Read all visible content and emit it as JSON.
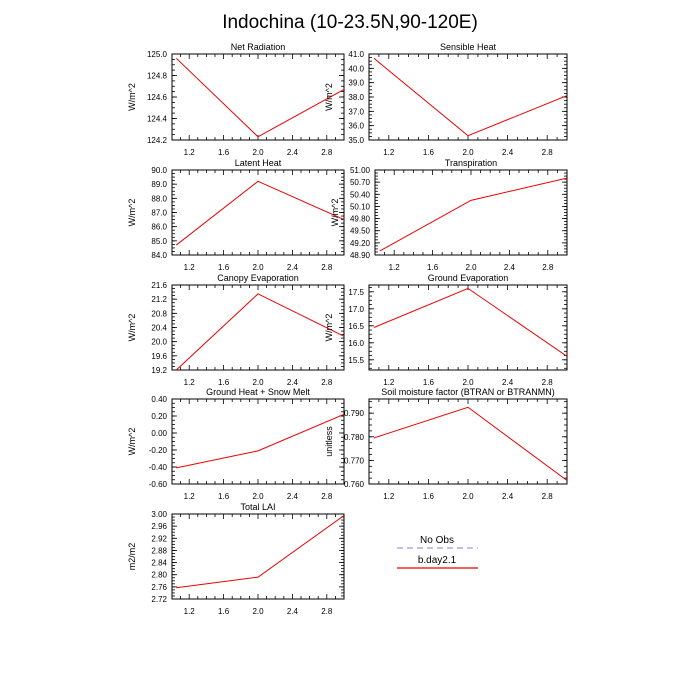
{
  "figure": {
    "title": "Indochina (10-23.5N,90-120E)"
  },
  "legend": {
    "items": [
      {
        "label": "No Obs",
        "color": "#9999ee",
        "dashed": true
      },
      {
        "label": "b.day2.1",
        "color": "#ee0000",
        "dashed": false
      }
    ]
  },
  "chart_data": [
    {
      "type": "line",
      "title": "Net Radiation",
      "ylabel": "W/m^2",
      "xlim": [
        1.0,
        3.0
      ],
      "xticks": [
        "1.2",
        "1.6",
        "2.0",
        "2.4",
        "2.8"
      ],
      "ylim": [
        124.2,
        125.0
      ],
      "yticks": [
        "124.2",
        "124.4",
        "124.6",
        "124.8",
        "125.0"
      ],
      "series": [
        {
          "name": "b.day2.1",
          "x": [
            1.05,
            2.0,
            3.0
          ],
          "y": [
            124.96,
            124.23,
            124.67
          ]
        }
      ]
    },
    {
      "type": "line",
      "title": "Sensible Heat",
      "ylabel": "W/m^2",
      "xlim": [
        1.0,
        3.0
      ],
      "xticks": [
        "1.2",
        "1.6",
        "2.0",
        "2.4",
        "2.8"
      ],
      "ylim": [
        35.0,
        41.0
      ],
      "yticks": [
        "35.0",
        "36.0",
        "37.0",
        "38.0",
        "39.0",
        "40.0",
        "41.0"
      ],
      "series": [
        {
          "name": "b.day2.1",
          "x": [
            1.05,
            2.0,
            3.0
          ],
          "y": [
            40.7,
            35.3,
            38.1
          ]
        }
      ]
    },
    {
      "type": "line",
      "title": "Latent Heat",
      "ylabel": "W/m^2",
      "xlim": [
        1.0,
        3.0
      ],
      "xticks": [
        "1.2",
        "1.6",
        "2.0",
        "2.4",
        "2.8"
      ],
      "ylim": [
        84.0,
        90.0
      ],
      "yticks": [
        "84.0",
        "85.0",
        "86.0",
        "87.0",
        "88.0",
        "89.0",
        "90.0"
      ],
      "series": [
        {
          "name": "b.day2.1",
          "x": [
            1.05,
            2.0,
            3.0
          ],
          "y": [
            84.7,
            89.2,
            86.5
          ]
        }
      ]
    },
    {
      "type": "line",
      "title": "Transpiration",
      "ylabel": "W/m^2",
      "xlim": [
        1.0,
        3.0
      ],
      "xticks": [
        "1.2",
        "1.6",
        "2.0",
        "2.4",
        "2.8"
      ],
      "ylim": [
        48.9,
        51.0
      ],
      "yticks": [
        "48.90",
        "49.20",
        "49.50",
        "49.80",
        "50.10",
        "50.40",
        "50.70",
        "51.00"
      ],
      "series": [
        {
          "name": "b.day2.1",
          "x": [
            1.05,
            2.0,
            3.0
          ],
          "y": [
            49.0,
            50.25,
            50.8
          ]
        }
      ]
    },
    {
      "type": "line",
      "title": "Canopy Evaporation",
      "ylabel": "W/m^2",
      "xlim": [
        1.0,
        3.0
      ],
      "xticks": [
        "1.2",
        "1.6",
        "2.0",
        "2.4",
        "2.8"
      ],
      "ylim": [
        19.2,
        21.6
      ],
      "yticks": [
        "19.2",
        "19.6",
        "20.0",
        "20.4",
        "20.8",
        "21.2",
        "21.6"
      ],
      "series": [
        {
          "name": "b.day2.1",
          "x": [
            1.05,
            2.0,
            3.0
          ],
          "y": [
            19.2,
            21.35,
            20.15
          ]
        }
      ]
    },
    {
      "type": "line",
      "title": "Ground Evaporation",
      "ylabel": "W/m^2",
      "xlim": [
        1.0,
        3.0
      ],
      "xticks": [
        "1.2",
        "1.6",
        "2.0",
        "2.4",
        "2.8"
      ],
      "ylim": [
        15.2,
        17.7
      ],
      "yticks": [
        "15.5",
        "16.0",
        "16.5",
        "17.0",
        "17.5"
      ],
      "series": [
        {
          "name": "b.day2.1",
          "x": [
            1.05,
            2.0,
            3.0
          ],
          "y": [
            16.45,
            17.6,
            15.6
          ]
        }
      ]
    },
    {
      "type": "line",
      "title": "Ground Heat + Snow Melt",
      "ylabel": "W/m^2",
      "xlim": [
        1.0,
        3.0
      ],
      "xticks": [
        "1.2",
        "1.6",
        "2.0",
        "2.4",
        "2.8"
      ],
      "ylim": [
        -0.6,
        0.4
      ],
      "yticks": [
        "-0.60",
        "-0.40",
        "-0.20",
        "0.00",
        "0.20",
        "0.40"
      ],
      "series": [
        {
          "name": "b.day2.1",
          "x": [
            1.05,
            2.0,
            3.0
          ],
          "y": [
            -0.41,
            -0.21,
            0.22
          ]
        }
      ]
    },
    {
      "type": "line",
      "title": "Soil moisture factor (BTRAN or BTRANMN)",
      "ylabel": "unitless",
      "xlim": [
        1.0,
        3.0
      ],
      "xticks": [
        "1.2",
        "1.6",
        "2.0",
        "2.4",
        "2.8"
      ],
      "ylim": [
        0.76,
        0.796
      ],
      "yticks": [
        "0.760",
        "0.770",
        "0.780",
        "0.790"
      ],
      "series": [
        {
          "name": "b.day2.1",
          "x": [
            1.05,
            2.0,
            3.0
          ],
          "y": [
            0.7795,
            0.7925,
            0.7615
          ]
        }
      ]
    },
    {
      "type": "line",
      "title": "Total LAI",
      "ylabel": "m2/m2",
      "xlim": [
        1.0,
        3.0
      ],
      "xticks": [
        "1.2",
        "1.6",
        "2.0",
        "2.4",
        "2.8"
      ],
      "ylim": [
        2.72,
        3.0
      ],
      "yticks": [
        "2.72",
        "2.76",
        "2.80",
        "2.84",
        "2.88",
        "2.92",
        "2.96",
        "3.00"
      ],
      "series": [
        {
          "name": "b.day2.1",
          "x": [
            1.05,
            2.0,
            3.0
          ],
          "y": [
            2.757,
            2.792,
            2.995
          ]
        }
      ]
    }
  ]
}
